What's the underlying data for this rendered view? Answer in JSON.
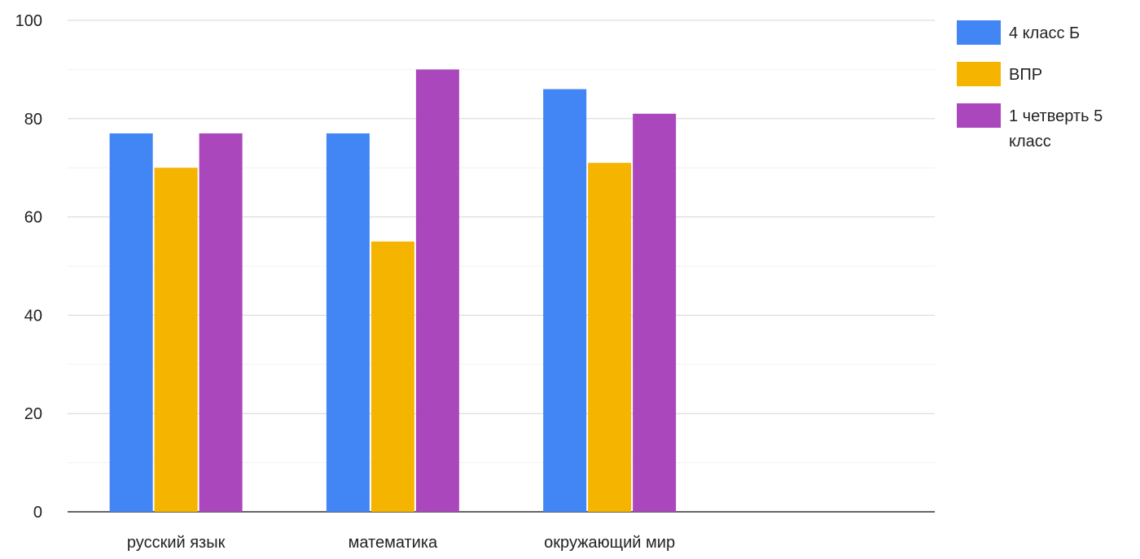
{
  "chart_data": {
    "type": "bar",
    "categories": [
      "русский язык",
      "математика",
      "окружающий мир",
      ""
    ],
    "series": [
      {
        "name": "4 класс Б",
        "values": [
          77,
          77,
          86,
          null
        ],
        "color": "#4285f4"
      },
      {
        "name": "ВПР",
        "values": [
          70,
          55,
          71,
          null
        ],
        "color": "#f4b400"
      },
      {
        "name": "1 четверть 5 класс",
        "values": [
          77,
          90,
          81,
          null
        ],
        "color": "#ab47bc"
      }
    ],
    "ylim": [
      0,
      100
    ],
    "yticks": [
      0,
      20,
      40,
      60,
      80,
      100
    ],
    "grid": true,
    "minor_grid": true,
    "legend_position": "right",
    "title": "",
    "xlabel": "",
    "ylabel": ""
  }
}
